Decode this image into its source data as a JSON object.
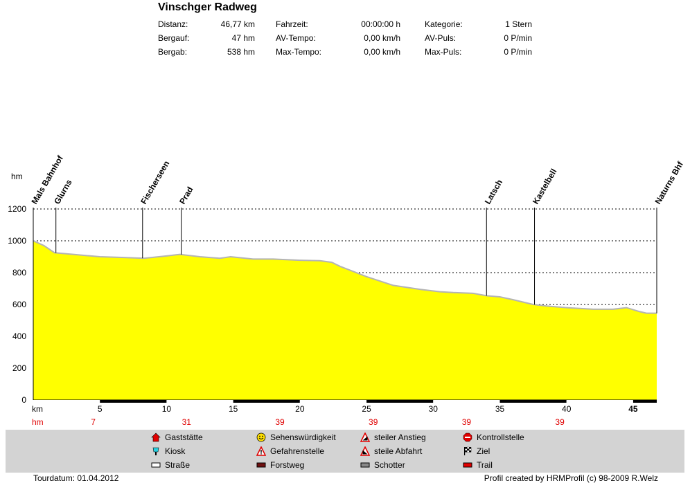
{
  "title": "Vinschger Radweg",
  "stats": {
    "col1": [
      {
        "label": "Distanz:",
        "value": "46,77 km"
      },
      {
        "label": "Bergauf:",
        "value": "47 hm"
      },
      {
        "label": "Bergab:",
        "value": "538 hm"
      }
    ],
    "col2": [
      {
        "label": "Fahrzeit:",
        "value": "00:00:00 h"
      },
      {
        "label": "AV-Tempo:",
        "value": "0,00 km/h"
      },
      {
        "label": "Max-Tempo:",
        "value": "0,00 km/h"
      }
    ],
    "col3": [
      {
        "label": "Kategorie:",
        "value": "1 Stern"
      },
      {
        "label": "AV-Puls:",
        "value": "0 P/min"
      },
      {
        "label": "Max-Puls:",
        "value": "0 P/min"
      }
    ]
  },
  "chart_data": {
    "type": "area",
    "ylabel": "hm",
    "xlabel": "km",
    "ylim": [
      0,
      1200
    ],
    "xlim": [
      0,
      46.77
    ],
    "yticks": [
      0,
      200,
      400,
      600,
      800,
      1000,
      1200
    ],
    "xticks": [
      5,
      10,
      15,
      20,
      25,
      30,
      35,
      40,
      45
    ],
    "grid": "horizontal dotted",
    "fill_color": "#ffff00",
    "line_color": "#b4b4b4",
    "profile": [
      [
        0,
        1000
      ],
      [
        0.8,
        970
      ],
      [
        1.6,
        925
      ],
      [
        3.0,
        915
      ],
      [
        5.0,
        900
      ],
      [
        6.8,
        895
      ],
      [
        8.3,
        890
      ],
      [
        10.0,
        905
      ],
      [
        11.0,
        915
      ],
      [
        12.5,
        900
      ],
      [
        14.0,
        890
      ],
      [
        14.8,
        900
      ],
      [
        16.5,
        885
      ],
      [
        18.0,
        885
      ],
      [
        20.0,
        878
      ],
      [
        21.5,
        875
      ],
      [
        22.4,
        865
      ],
      [
        23.0,
        840
      ],
      [
        25.0,
        775
      ],
      [
        27.0,
        720
      ],
      [
        29.0,
        695
      ],
      [
        30.5,
        680
      ],
      [
        31.5,
        675
      ],
      [
        33.0,
        670
      ],
      [
        34.0,
        655
      ],
      [
        35.0,
        648
      ],
      [
        36.0,
        630
      ],
      [
        37.5,
        600
      ],
      [
        38.5,
        590
      ],
      [
        40.0,
        580
      ],
      [
        42.0,
        570
      ],
      [
        43.5,
        570
      ],
      [
        44.5,
        580
      ],
      [
        45.5,
        555
      ],
      [
        46.0,
        545
      ],
      [
        46.77,
        545
      ]
    ],
    "waypoints": [
      {
        "name": "Mals Bahnhof",
        "km": 0
      },
      {
        "name": "Glurns",
        "km": 1.7
      },
      {
        "name": "Fischerseen",
        "km": 8.2
      },
      {
        "name": "Prad",
        "km": 11.1
      },
      {
        "name": "Latsch",
        "km": 34.0
      },
      {
        "name": "Kastelbell",
        "km": 37.6
      },
      {
        "name": "Naturns Bhf",
        "km": 46.77
      }
    ],
    "surface_segments": [
      {
        "type": "Straße",
        "from": 0,
        "to": 5
      },
      {
        "type": "Forstweg",
        "from": 5,
        "to": 10
      },
      {
        "type": "Straße",
        "from": 10,
        "to": 15
      },
      {
        "type": "Forstweg",
        "from": 15,
        "to": 20
      },
      {
        "type": "Straße",
        "from": 20,
        "to": 25
      },
      {
        "type": "Forstweg",
        "from": 25,
        "to": 30
      },
      {
        "type": "Straße",
        "from": 30,
        "to": 35
      },
      {
        "type": "Forstweg",
        "from": 35,
        "to": 40
      },
      {
        "type": "Straße",
        "from": 40,
        "to": 45
      },
      {
        "type": "Forstweg",
        "from": 45,
        "to": 46.77
      }
    ],
    "hm_row": {
      "label": "hm",
      "values": [
        {
          "km": 4.5,
          "text": "7"
        },
        {
          "km": 11.5,
          "text": "31"
        },
        {
          "km": 18.5,
          "text": "39"
        },
        {
          "km": 25.5,
          "text": "39"
        },
        {
          "km": 32.5,
          "text": "39"
        },
        {
          "km": 39.5,
          "text": "39"
        }
      ]
    }
  },
  "legend": [
    {
      "label": "Gaststätte",
      "icon": "gasthaus-icon"
    },
    {
      "label": "Kiosk",
      "icon": "kiosk-icon"
    },
    {
      "label": "Straße",
      "icon": "strasse-icon"
    },
    {
      "label": "Sehenswürdigkeit",
      "icon": "smiley-icon"
    },
    {
      "label": "Gefahrenstelle",
      "icon": "danger-icon"
    },
    {
      "label": "Forstweg",
      "icon": "forstweg-icon"
    },
    {
      "label": "steiler Anstieg",
      "icon": "steep-up-icon"
    },
    {
      "label": "steile Abfahrt",
      "icon": "steep-down-icon"
    },
    {
      "label": "Schotter",
      "icon": "schotter-icon"
    },
    {
      "label": "Kontrollstelle",
      "icon": "stop-icon"
    },
    {
      "label": "Ziel",
      "icon": "finish-flag-icon"
    },
    {
      "label": "Trail",
      "icon": "trail-icon"
    }
  ],
  "footer": {
    "date": "Tourdatum: 01.04.2012",
    "credit": "Profil created by HRMProfil (c) 98-2009 R.Welz"
  }
}
